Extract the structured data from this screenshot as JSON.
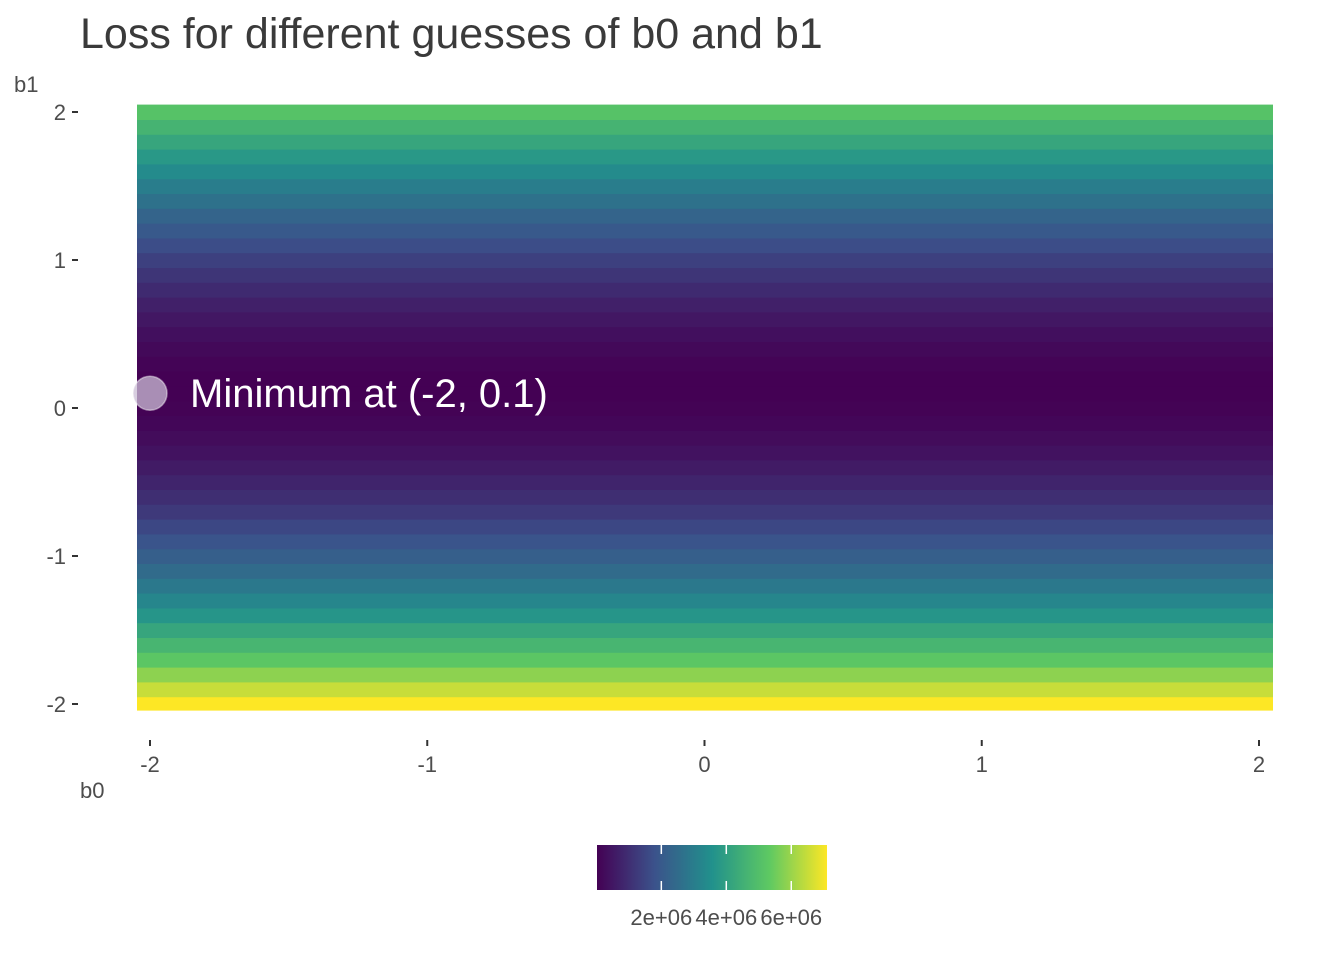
{
  "chart_data": {
    "type": "heatmap",
    "title": "Loss for different guesses of b0 and b1",
    "xlabel": "b0",
    "ylabel": "b1",
    "xlim": [
      -2,
      2
    ],
    "ylim": [
      -2,
      2
    ],
    "x_ticks": [
      -2,
      -1,
      0,
      1,
      2
    ],
    "x_tick_labels": [
      "-2",
      "-1",
      "0",
      "1",
      "2"
    ],
    "y_ticks": [
      -2,
      -1,
      0,
      1,
      2
    ],
    "y_tick_labels": [
      "-2",
      "-1",
      "0",
      "1",
      "2"
    ],
    "grid": false,
    "colormap": "viridis",
    "colormap_stops": [
      "#440154",
      "#3b528b",
      "#21918c",
      "#5ec962",
      "#fde725"
    ],
    "b1_steps": 41,
    "b1_values": [
      -2,
      -1.9,
      -1.8,
      -1.7,
      -1.6,
      -1.5,
      -1.4,
      -1.3,
      -1.2,
      -1.1,
      -1,
      -0.9,
      -0.8,
      -0.7,
      -0.6,
      -0.5,
      -0.4,
      -0.3,
      -0.2,
      -0.1,
      0,
      0.1,
      0.2,
      0.3,
      0.4,
      0.5,
      0.6,
      0.7,
      0.8,
      0.9,
      1,
      1.1,
      1.2,
      1.3,
      1.4,
      1.5,
      1.6,
      1.7,
      1.8,
      1.9,
      2
    ],
    "loss_by_b1": [
      7100000,
      6500000,
      5850000,
      5250000,
      4700000,
      4200000,
      3700000,
      3250000,
      2850000,
      2500000,
      2150000,
      1850000,
      1550000,
      1250000,
      1000000,
      780000,
      580000,
      400000,
      260000,
      140000,
      60000,
      20000,
      30000,
      90000,
      190000,
      330000,
      500000,
      700000,
      920000,
      1150000,
      1400000,
      1680000,
      1980000,
      2300000,
      2650000,
      3000000,
      3380000,
      3780000,
      4200000,
      4640000,
      5100000
    ],
    "loss_range": [
      20000,
      7100000
    ],
    "minimum": {
      "b0": -2,
      "b1": 0.1,
      "label": "Minimum at (-2, 0.1)"
    },
    "legend": {
      "position": "bottom",
      "breaks": [
        2000000,
        4000000,
        6000000
      ],
      "labels": [
        "2e+06",
        "4e+06",
        "6e+06"
      ]
    }
  }
}
